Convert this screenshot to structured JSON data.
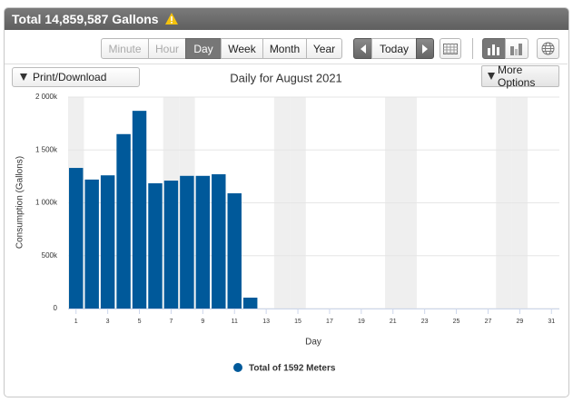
{
  "header": {
    "title": "Total 14,859,587 Gallons"
  },
  "toolbar": {
    "intervals": [
      "Minute",
      "Hour",
      "Day",
      "Week",
      "Month",
      "Year"
    ],
    "today": "Today"
  },
  "print": "Print/Download",
  "more_options": "More Options",
  "chart_data": {
    "type": "bar",
    "title": "Daily for August 2021",
    "x_label": "Day",
    "y_label": "Consumption (Gallons)",
    "x": [
      1,
      2,
      3,
      4,
      5,
      6,
      7,
      8,
      9,
      10,
      11,
      12
    ],
    "series": [
      {
        "name": "Total of 1592 Meters",
        "color": "#00599a",
        "values": [
          1330000,
          1220000,
          1260000,
          1650000,
          1870000,
          1185000,
          1210000,
          1255000,
          1255000,
          1270000,
          1090000,
          103000
        ]
      }
    ],
    "xlim": [
      0.5,
      31.5
    ],
    "xticks": [
      1,
      3,
      5,
      7,
      9,
      11,
      13,
      15,
      17,
      19,
      21,
      23,
      25,
      27,
      29,
      31
    ],
    "ylim": [
      0,
      2000000
    ],
    "yticks": [
      0,
      {
        "value": 500000,
        "label": "500k"
      },
      {
        "value": 1000000,
        "label": "1 000k"
      },
      {
        "value": 1500000,
        "label": "1 500k"
      },
      {
        "value": 2000000,
        "label": "2 000k"
      }
    ],
    "highlight_days": [
      1,
      7,
      8,
      14,
      15,
      21,
      22,
      28,
      29
    ],
    "grid": true
  }
}
